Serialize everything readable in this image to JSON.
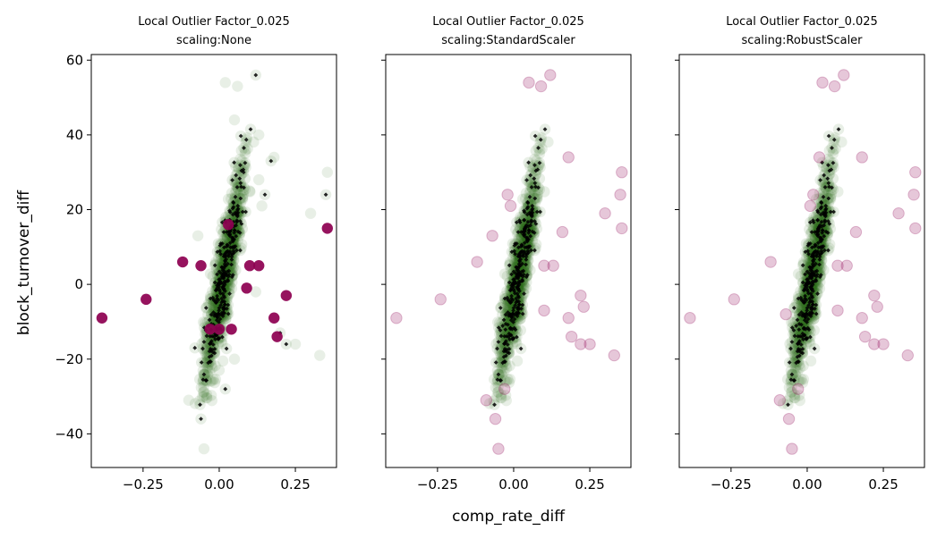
{
  "chart_data": {
    "type": "scatter",
    "xlabel": "comp_rate_diff",
    "ylabel": "block_turnover_diff",
    "xlim": [
      -0.42,
      0.385
    ],
    "ylim": [
      -49,
      61.5
    ],
    "xticks": [
      -0.25,
      0.0,
      0.25
    ],
    "xtick_labels": [
      "−0.25",
      "0.00",
      "0.25"
    ],
    "yticks": [
      -40,
      -20,
      0,
      20,
      40,
      60
    ],
    "ytick_labels": [
      "−40",
      "−20",
      "0",
      "20",
      "40",
      "60"
    ],
    "grid": false,
    "colors": {
      "inlier": "#2d6a1f",
      "outlier": "#8e0152",
      "marker": "#000000"
    },
    "panels": [
      {
        "title_line1": "Local Outlier Factor_0.025",
        "title_line2": "scaling:None",
        "outliers_solid": true,
        "outlier_points": [
          [
            -0.385,
            -9
          ],
          [
            -0.24,
            -4
          ],
          [
            -0.12,
            6
          ],
          [
            -0.06,
            5
          ],
          [
            0.03,
            16
          ],
          [
            0.04,
            -12
          ],
          [
            0.0,
            -12
          ],
          [
            -0.03,
            -12
          ],
          [
            0.1,
            5
          ],
          [
            0.13,
            5
          ],
          [
            0.09,
            -1
          ],
          [
            0.22,
            -3
          ],
          [
            0.18,
            -9
          ],
          [
            0.19,
            -14
          ],
          [
            0.355,
            15
          ]
        ]
      },
      {
        "title_line1": "Local Outlier Factor_0.025",
        "title_line2": "scaling:StandardScaler",
        "outliers_solid": false,
        "outlier_points": [
          [
            -0.385,
            -9
          ],
          [
            -0.24,
            -4
          ],
          [
            -0.12,
            6
          ],
          [
            -0.09,
            -31
          ],
          [
            -0.06,
            -36
          ],
          [
            -0.05,
            -44
          ],
          [
            0.09,
            53
          ],
          [
            0.12,
            56
          ],
          [
            0.05,
            54
          ],
          [
            0.18,
            34
          ],
          [
            0.16,
            14
          ],
          [
            0.1,
            5
          ],
          [
            0.13,
            5
          ],
          [
            0.1,
            -7
          ],
          [
            0.22,
            -3
          ],
          [
            0.23,
            -6
          ],
          [
            0.18,
            -9
          ],
          [
            0.19,
            -14
          ],
          [
            0.22,
            -16
          ],
          [
            0.25,
            -16
          ],
          [
            0.33,
            -19
          ],
          [
            0.355,
            30
          ],
          [
            0.35,
            24
          ],
          [
            0.3,
            19
          ],
          [
            0.355,
            15
          ],
          [
            -0.02,
            24
          ],
          [
            -0.01,
            21
          ],
          [
            -0.07,
            13
          ],
          [
            -0.03,
            -28
          ]
        ]
      },
      {
        "title_line1": "Local Outlier Factor_0.025",
        "title_line2": "scaling:RobustScaler",
        "outliers_solid": false,
        "outlier_points": [
          [
            -0.385,
            -9
          ],
          [
            -0.24,
            -4
          ],
          [
            -0.12,
            6
          ],
          [
            -0.09,
            -31
          ],
          [
            -0.06,
            -36
          ],
          [
            -0.05,
            -44
          ],
          [
            0.09,
            53
          ],
          [
            0.12,
            56
          ],
          [
            0.05,
            54
          ],
          [
            0.18,
            34
          ],
          [
            0.16,
            14
          ],
          [
            0.1,
            5
          ],
          [
            0.13,
            5
          ],
          [
            0.1,
            -7
          ],
          [
            0.22,
            -3
          ],
          [
            0.23,
            -6
          ],
          [
            0.18,
            -9
          ],
          [
            0.19,
            -14
          ],
          [
            0.22,
            -16
          ],
          [
            0.25,
            -16
          ],
          [
            0.33,
            -19
          ],
          [
            0.355,
            30
          ],
          [
            0.35,
            24
          ],
          [
            0.3,
            19
          ],
          [
            0.355,
            15
          ],
          [
            0.02,
            24
          ],
          [
            0.01,
            21
          ],
          [
            0.04,
            34
          ],
          [
            -0.07,
            -8
          ],
          [
            -0.03,
            -28
          ]
        ]
      }
    ],
    "panel1_extra_inliers": [
      [
        0.02,
        54
      ],
      [
        0.06,
        53
      ],
      [
        0.12,
        56
      ],
      [
        0.05,
        44
      ],
      [
        0.13,
        40
      ],
      [
        0.17,
        33
      ],
      [
        0.18,
        34
      ],
      [
        0.13,
        28
      ],
      [
        0.15,
        24
      ],
      [
        0.14,
        21
      ],
      [
        0.3,
        19
      ],
      [
        0.35,
        24
      ],
      [
        0.355,
        30
      ],
      [
        0.1,
        25
      ],
      [
        0.08,
        30
      ],
      [
        -0.07,
        13
      ],
      [
        -0.1,
        -31
      ],
      [
        -0.06,
        -36
      ],
      [
        -0.05,
        -44
      ],
      [
        -0.05,
        -30
      ],
      [
        0.22,
        -16
      ],
      [
        0.25,
        -16
      ],
      [
        0.33,
        -19
      ],
      [
        0.2,
        -13
      ],
      [
        0.12,
        -2
      ],
      [
        0.0,
        -23
      ],
      [
        0.02,
        -28
      ],
      [
        0.05,
        -20
      ],
      [
        -0.04,
        -26
      ],
      [
        -0.08,
        -17
      ]
    ]
  }
}
